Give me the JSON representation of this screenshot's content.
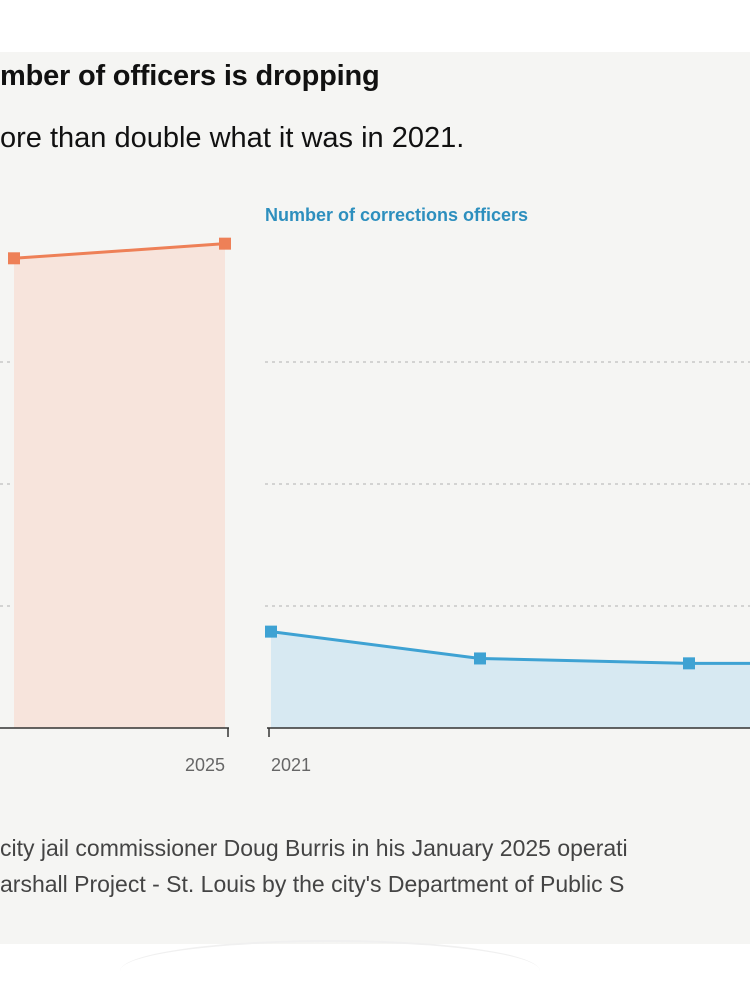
{
  "header": {
    "title": "mber of officers is dropping",
    "subtitle": "ore than double what it was in 2021."
  },
  "source": {
    "line1": "city jail commissioner Doug Burris in his January 2025 operati",
    "line2": "arshall Project - St. Louis by the city's Department of Public S"
  },
  "colors": {
    "left_series": "#ee8057",
    "left_fill": "#f7e4dc",
    "right_series": "#3ea2d3",
    "right_fill": "#d7e9f2",
    "right_label": "#2d8fbe",
    "grid": "#c8c8c8",
    "axis": "#333333"
  },
  "chart_data": [
    {
      "type": "area",
      "title": "",
      "x_ticks_visible": [
        "2025"
      ],
      "x": [
        "",
        "2025"
      ],
      "values": [
        3.85,
        3.97
      ],
      "ylim": [
        0,
        4
      ],
      "grid": true,
      "gridline_count": 3
    },
    {
      "type": "area",
      "title": "Number of corrections officers",
      "x_ticks_visible": [
        "2021"
      ],
      "x": [
        "2021",
        "",
        "",
        ""
      ],
      "values": [
        0.79,
        0.57,
        0.53,
        0.53
      ],
      "ylim": [
        0,
        4
      ],
      "grid": true,
      "gridline_count": 3
    }
  ]
}
